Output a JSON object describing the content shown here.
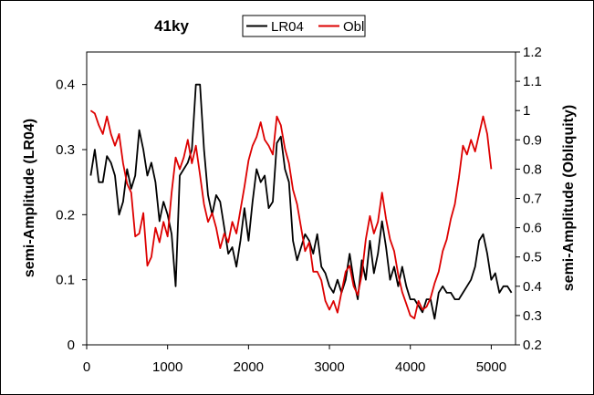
{
  "chart_data": {
    "type": "line",
    "title": "41ky",
    "xlabel": "",
    "ylabel": "semi-Amplitude (LR04)",
    "y2label": "semi-Amplitude (Obliquity)",
    "xlim": [
      0,
      5300
    ],
    "ylim": [
      0,
      0.45
    ],
    "y2lim": [
      0.2,
      1.2
    ],
    "xticks": [
      0,
      1000,
      2000,
      3000,
      4000,
      5000
    ],
    "xtick_labels": [
      "0",
      "1000",
      "2000",
      "3000",
      "4000",
      "5000"
    ],
    "yticks": [
      0,
      0.1,
      0.2,
      0.3,
      0.4
    ],
    "ytick_labels": [
      "0",
      "0.1",
      "0.2",
      "0.3",
      "0.4"
    ],
    "y2ticks": [
      0.2,
      0.3,
      0.4,
      0.5,
      0.6,
      0.7,
      0.8,
      0.9,
      1,
      1.1,
      1.2
    ],
    "y2tick_labels": [
      "0.2",
      "0.3",
      "0.4",
      "0.5",
      "0.6",
      "0.7",
      "0.8",
      "0.9",
      "1",
      "1.1",
      "1.2"
    ],
    "legend_position": "top-center",
    "grid": false,
    "series": [
      {
        "name": "LR04",
        "color": "#000000",
        "axis": "left",
        "x": [
          50,
          100,
          150,
          200,
          250,
          300,
          350,
          400,
          450,
          500,
          550,
          600,
          650,
          700,
          750,
          800,
          850,
          900,
          950,
          1000,
          1050,
          1100,
          1150,
          1200,
          1250,
          1300,
          1350,
          1400,
          1450,
          1500,
          1550,
          1600,
          1650,
          1700,
          1750,
          1800,
          1850,
          1900,
          1950,
          2000,
          2050,
          2100,
          2150,
          2200,
          2250,
          2300,
          2350,
          2400,
          2450,
          2500,
          2550,
          2600,
          2650,
          2700,
          2750,
          2800,
          2850,
          2900,
          2950,
          3000,
          3050,
          3100,
          3150,
          3200,
          3250,
          3300,
          3350,
          3400,
          3450,
          3500,
          3550,
          3600,
          3650,
          3700,
          3750,
          3800,
          3850,
          3900,
          3950,
          4000,
          4050,
          4100,
          4150,
          4200,
          4250,
          4300,
          4350,
          4400,
          4450,
          4500,
          4550,
          4600,
          4650,
          4700,
          4750,
          4800,
          4850,
          4900,
          4950,
          5000,
          5050,
          5100,
          5150,
          5200,
          5250
        ],
        "values": [
          0.26,
          0.3,
          0.25,
          0.25,
          0.29,
          0.28,
          0.26,
          0.2,
          0.22,
          0.27,
          0.24,
          0.26,
          0.33,
          0.3,
          0.26,
          0.28,
          0.25,
          0.19,
          0.22,
          0.2,
          0.17,
          0.09,
          0.26,
          0.27,
          0.28,
          0.3,
          0.4,
          0.4,
          0.3,
          0.23,
          0.2,
          0.23,
          0.22,
          0.18,
          0.14,
          0.15,
          0.12,
          0.16,
          0.21,
          0.16,
          0.22,
          0.27,
          0.25,
          0.26,
          0.21,
          0.22,
          0.31,
          0.32,
          0.27,
          0.25,
          0.16,
          0.13,
          0.15,
          0.17,
          0.16,
          0.14,
          0.17,
          0.12,
          0.11,
          0.09,
          0.08,
          0.1,
          0.08,
          0.1,
          0.14,
          0.1,
          0.07,
          0.13,
          0.1,
          0.16,
          0.11,
          0.14,
          0.19,
          0.15,
          0.1,
          0.12,
          0.09,
          0.12,
          0.09,
          0.07,
          0.07,
          0.06,
          0.05,
          0.07,
          0.07,
          0.04,
          0.08,
          0.09,
          0.08,
          0.08,
          0.07,
          0.07,
          0.08,
          0.09,
          0.1,
          0.12,
          0.16,
          0.17,
          0.14,
          0.1,
          0.11,
          0.08,
          0.09,
          0.09,
          0.08
        ]
      },
      {
        "name": "Obl",
        "color": "#dd0000",
        "axis": "right",
        "x": [
          50,
          100,
          150,
          200,
          250,
          300,
          350,
          400,
          450,
          500,
          550,
          600,
          650,
          700,
          750,
          800,
          850,
          900,
          950,
          1000,
          1050,
          1100,
          1150,
          1200,
          1250,
          1300,
          1350,
          1400,
          1450,
          1500,
          1550,
          1600,
          1650,
          1700,
          1750,
          1800,
          1850,
          1900,
          1950,
          2000,
          2050,
          2100,
          2150,
          2200,
          2250,
          2300,
          2350,
          2400,
          2450,
          2500,
          2550,
          2600,
          2650,
          2700,
          2750,
          2800,
          2850,
          2900,
          2950,
          3000,
          3050,
          3100,
          3150,
          3200,
          3250,
          3300,
          3350,
          3400,
          3450,
          3500,
          3550,
          3600,
          3650,
          3700,
          3750,
          3800,
          3850,
          3900,
          3950,
          4000,
          4050,
          4100,
          4150,
          4200,
          4250,
          4300,
          4350,
          4400,
          4450,
          4500,
          4550,
          4600,
          4650,
          4700,
          4750,
          4800,
          4850,
          4900,
          4950,
          5000
        ],
        "values": [
          1.0,
          0.99,
          0.95,
          0.92,
          0.98,
          0.92,
          0.88,
          0.92,
          0.82,
          0.75,
          0.72,
          0.57,
          0.58,
          0.65,
          0.47,
          0.5,
          0.6,
          0.55,
          0.62,
          0.57,
          0.72,
          0.84,
          0.8,
          0.84,
          0.9,
          0.82,
          0.88,
          0.78,
          0.68,
          0.62,
          0.65,
          0.6,
          0.53,
          0.58,
          0.55,
          0.62,
          0.58,
          0.66,
          0.74,
          0.83,
          0.88,
          0.91,
          0.96,
          0.9,
          0.88,
          0.85,
          0.98,
          0.95,
          0.87,
          0.82,
          0.73,
          0.68,
          0.6,
          0.52,
          0.55,
          0.45,
          0.45,
          0.42,
          0.35,
          0.32,
          0.35,
          0.31,
          0.38,
          0.45,
          0.47,
          0.4,
          0.37,
          0.44,
          0.56,
          0.64,
          0.58,
          0.62,
          0.72,
          0.63,
          0.56,
          0.52,
          0.44,
          0.38,
          0.34,
          0.3,
          0.29,
          0.35,
          0.32,
          0.33,
          0.36,
          0.41,
          0.45,
          0.52,
          0.56,
          0.63,
          0.68,
          0.77,
          0.88,
          0.85,
          0.9,
          0.86,
          0.92,
          0.98,
          0.92,
          0.8
        ]
      }
    ]
  }
}
